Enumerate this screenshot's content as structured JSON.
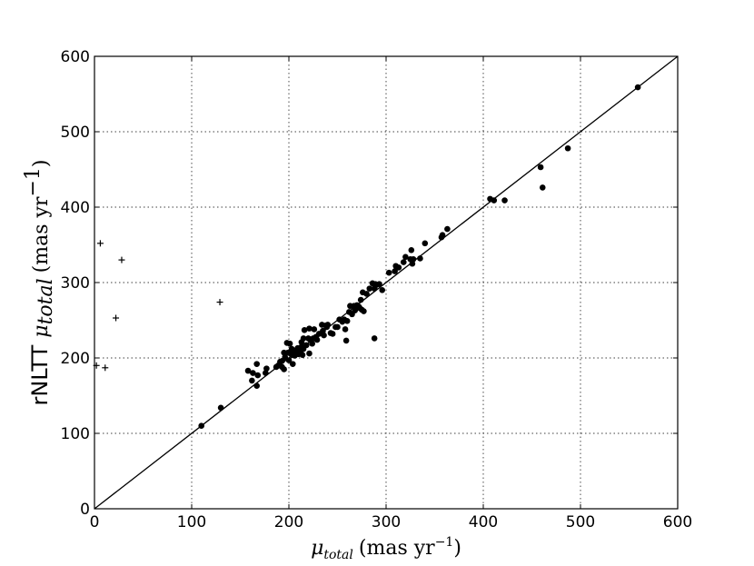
{
  "chart_data": {
    "type": "scatter",
    "title": "",
    "xlabel": {
      "symbol": "μ",
      "subscript": "total",
      "units": "(mas yr",
      "exponent": "−1",
      "close": ")"
    },
    "ylabel": {
      "prefix": "rNLTT",
      "symbol": "μ",
      "subscript": "total",
      "units": "(mas yr",
      "exponent": "−1",
      "close": ")"
    },
    "xlim": [
      0,
      600
    ],
    "ylim": [
      0,
      600
    ],
    "xticks": [
      "0",
      "100",
      "200",
      "300",
      "400",
      "500",
      "600"
    ],
    "yticks": [
      "0",
      "100",
      "200",
      "300",
      "400",
      "500",
      "600"
    ],
    "grid": true,
    "reference_line": {
      "x": [
        0,
        600
      ],
      "y": [
        0,
        600
      ]
    },
    "series": [
      {
        "marker": "dot",
        "points": [
          [
            110,
            110
          ],
          [
            130,
            134
          ],
          [
            158,
            183
          ],
          [
            162,
            170
          ],
          [
            163,
            180
          ],
          [
            167,
            163
          ],
          [
            167,
            192
          ],
          [
            168,
            177
          ],
          [
            176,
            180
          ],
          [
            177,
            186
          ],
          [
            187,
            188
          ],
          [
            189,
            190
          ],
          [
            191,
            195
          ],
          [
            193,
            196
          ],
          [
            193,
            188
          ],
          [
            195,
            207
          ],
          [
            195,
            185
          ],
          [
            196,
            201
          ],
          [
            198,
            220
          ],
          [
            199,
            207
          ],
          [
            200,
            197
          ],
          [
            201,
            219
          ],
          [
            202,
            209
          ],
          [
            203,
            204
          ],
          [
            203,
            212
          ],
          [
            204,
            192
          ],
          [
            205,
            206
          ],
          [
            206,
            203
          ],
          [
            207,
            210
          ],
          [
            209,
            213
          ],
          [
            210,
            212
          ],
          [
            210,
            205
          ],
          [
            212,
            207
          ],
          [
            213,
            215
          ],
          [
            213,
            221
          ],
          [
            214,
            204
          ],
          [
            215,
            226
          ],
          [
            215,
            212
          ],
          [
            216,
            237
          ],
          [
            218,
            217
          ],
          [
            220,
            226
          ],
          [
            221,
            239
          ],
          [
            221,
            206
          ],
          [
            222,
            224
          ],
          [
            224,
            219
          ],
          [
            225,
            226
          ],
          [
            226,
            238
          ],
          [
            228,
            228
          ],
          [
            229,
            224
          ],
          [
            231,
            232
          ],
          [
            234,
            244
          ],
          [
            235,
            236
          ],
          [
            236,
            230
          ],
          [
            238,
            243
          ],
          [
            239,
            241
          ],
          [
            240,
            244
          ],
          [
            243,
            233
          ],
          [
            245,
            232
          ],
          [
            248,
            241
          ],
          [
            250,
            241
          ],
          [
            252,
            251
          ],
          [
            255,
            248
          ],
          [
            257,
            251
          ],
          [
            258,
            238
          ],
          [
            259,
            223
          ],
          [
            260,
            249
          ],
          [
            262,
            261
          ],
          [
            263,
            269
          ],
          [
            265,
            258
          ],
          [
            267,
            269
          ],
          [
            268,
            263
          ],
          [
            270,
            270
          ],
          [
            272,
            268
          ],
          [
            273,
            266
          ],
          [
            274,
            277
          ],
          [
            275,
            264
          ],
          [
            276,
            287
          ],
          [
            277,
            262
          ],
          [
            280,
            285
          ],
          [
            283,
            292
          ],
          [
            286,
            299
          ],
          [
            288,
            226
          ],
          [
            288,
            292
          ],
          [
            289,
            298
          ],
          [
            290,
            297
          ],
          [
            293,
            298
          ],
          [
            296,
            290
          ],
          [
            303,
            313
          ],
          [
            309,
            315
          ],
          [
            310,
            322
          ],
          [
            313,
            320
          ],
          [
            318,
            327
          ],
          [
            320,
            334
          ],
          [
            325,
            331
          ],
          [
            326,
            343
          ],
          [
            327,
            325
          ],
          [
            328,
            331
          ],
          [
            335,
            332
          ],
          [
            340,
            352
          ],
          [
            357,
            360
          ],
          [
            358,
            363
          ],
          [
            363,
            371
          ],
          [
            407,
            411
          ],
          [
            411,
            409
          ],
          [
            422,
            409
          ],
          [
            459,
            453
          ],
          [
            461,
            426
          ],
          [
            487,
            478
          ],
          [
            559,
            559
          ]
        ]
      },
      {
        "marker": "plus",
        "points": [
          [
            2,
            190
          ],
          [
            6,
            352
          ],
          [
            11,
            187
          ],
          [
            22,
            253
          ],
          [
            28,
            330
          ],
          [
            129,
            274
          ]
        ]
      }
    ]
  }
}
